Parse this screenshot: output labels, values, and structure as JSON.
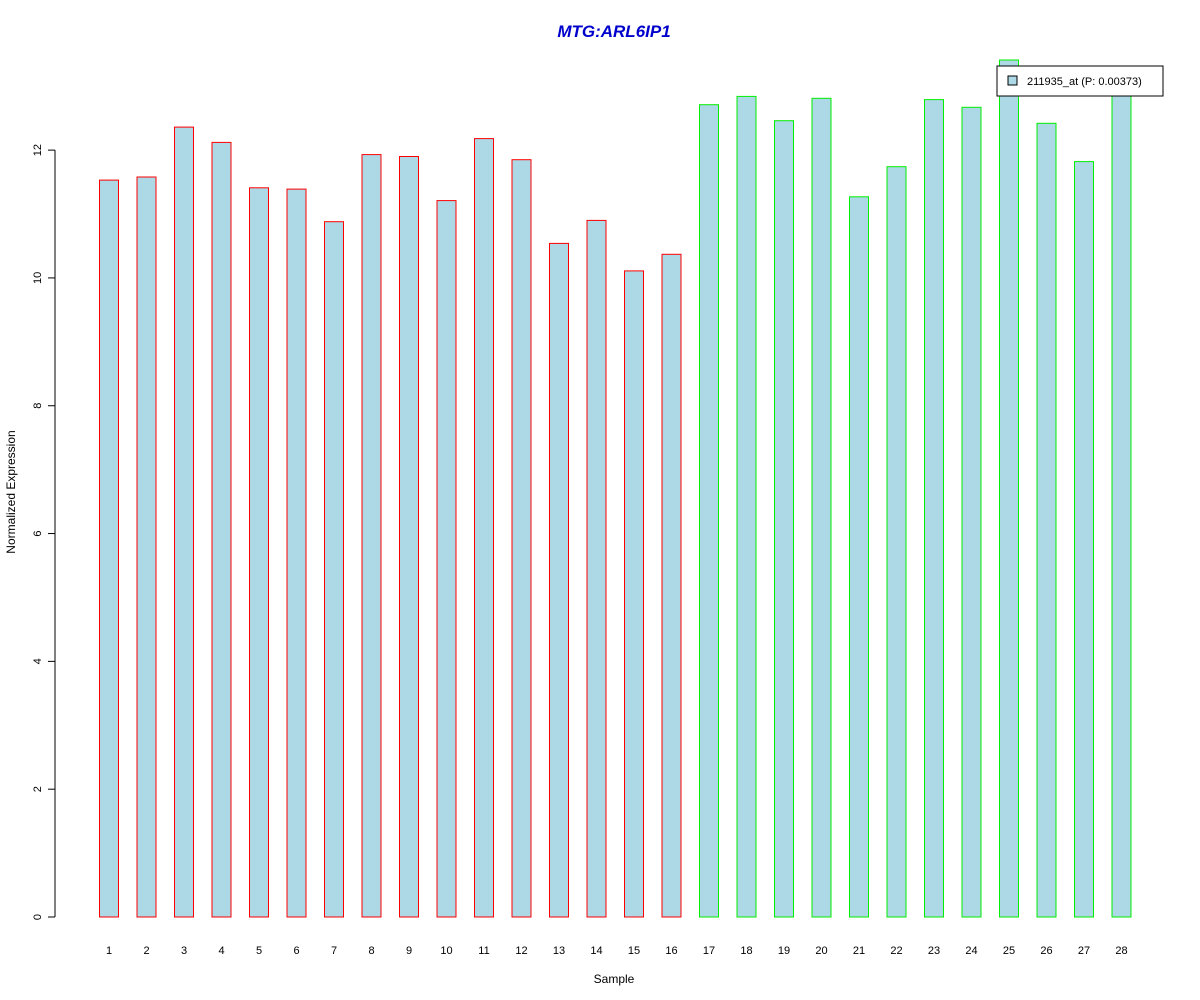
{
  "chart_data": {
    "type": "bar",
    "title": "MTG:ARL6IP1",
    "xlabel": "Sample",
    "ylabel": "Normalized Expression",
    "categories": [
      "1",
      "2",
      "3",
      "4",
      "5",
      "6",
      "7",
      "8",
      "9",
      "10",
      "11",
      "12",
      "13",
      "14",
      "15",
      "16",
      "17",
      "18",
      "19",
      "20",
      "21",
      "22",
      "23",
      "24",
      "25",
      "26",
      "27",
      "28"
    ],
    "series": [
      {
        "name": "211935_at (P: 0.00373)",
        "values": [
          11.53,
          11.58,
          12.36,
          12.12,
          11.41,
          11.39,
          10.88,
          11.93,
          11.9,
          11.21,
          12.18,
          11.85,
          10.54,
          10.9,
          10.11,
          10.37,
          12.71,
          12.84,
          12.46,
          12.81,
          11.27,
          11.74,
          12.79,
          12.67,
          13.41,
          12.42,
          11.82,
          13.13
        ]
      }
    ],
    "group_borders": [
      "#ff0000",
      "#ff0000",
      "#ff0000",
      "#ff0000",
      "#ff0000",
      "#ff0000",
      "#ff0000",
      "#ff0000",
      "#ff0000",
      "#ff0000",
      "#ff0000",
      "#ff0000",
      "#ff0000",
      "#ff0000",
      "#ff0000",
      "#ff0000",
      "#00ee00",
      "#00ee00",
      "#00ee00",
      "#00ee00",
      "#00ee00",
      "#00ee00",
      "#00ee00",
      "#00ee00",
      "#00ee00",
      "#00ee00",
      "#00ee00",
      "#00ee00"
    ],
    "yticks": [
      "0",
      "2",
      "4",
      "6",
      "8",
      "10",
      "12"
    ],
    "ylim": [
      0,
      13.41
    ],
    "grid": false,
    "legend_position": "top-right",
    "colors": {
      "bar_fill": "#add8e6",
      "title": "#0000cc"
    }
  }
}
